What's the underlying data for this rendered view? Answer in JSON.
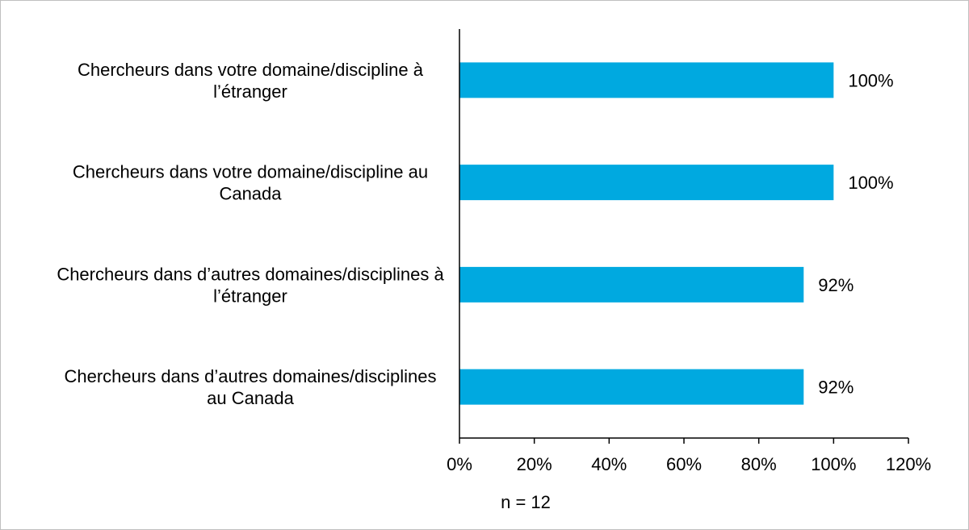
{
  "chart_data": {
    "type": "bar",
    "orientation": "horizontal",
    "categories": [
      [
        "Chercheurs dans votre domaine/discipline à",
        "l’étranger"
      ],
      [
        "Chercheurs dans votre domaine/discipline au",
        "Canada"
      ],
      [
        "Chercheurs dans d’autres domaines/disciplines à",
        "l’étranger"
      ],
      [
        "Chercheurs dans d’autres domaines/disciplines",
        "au Canada"
      ]
    ],
    "values": [
      100,
      100,
      92,
      92
    ],
    "data_labels": [
      "100%",
      "100%",
      "92%",
      "92%"
    ],
    "xlim": [
      0,
      120
    ],
    "x_ticks": [
      0,
      20,
      40,
      60,
      80,
      100,
      120
    ],
    "x_tick_labels": [
      "0%",
      "20%",
      "40%",
      "60%",
      "80%",
      "100%",
      "120%"
    ],
    "bar_color": "#00a9e0",
    "grid": false,
    "legend": "none",
    "annotation": "n = 12"
  }
}
